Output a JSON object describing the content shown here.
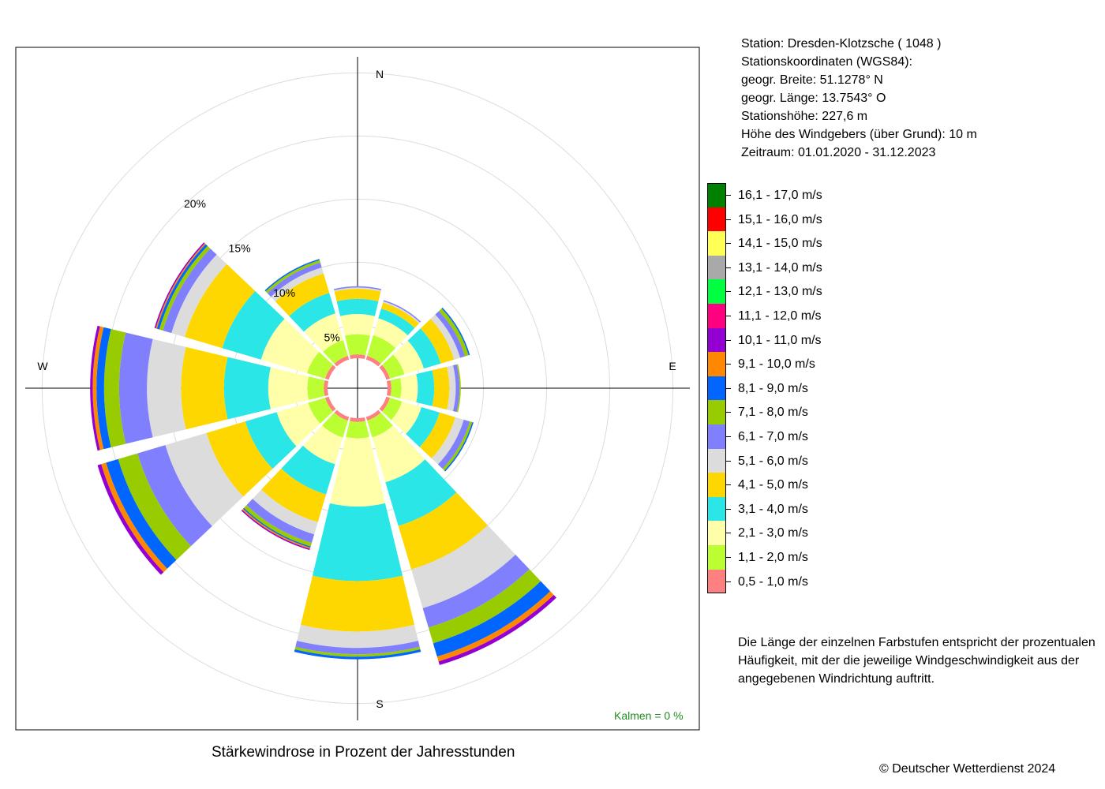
{
  "station_info": {
    "station": "Station:  Dresden-Klotzsche  ( 1048 )",
    "coords_title": "Stationskoordinaten (WGS84):",
    "latitude": "geogr. Breite: 51.1278° N",
    "longitude": "geogr. Länge: 13.7543° O",
    "elevation": "Stationshöhe: 227,6 m",
    "sensor_height": "Höhe des Windgebers (über Grund): 10 m",
    "period": "Zeitraum: 01.01.2020 - 31.12.2023"
  },
  "note_text": "Die Länge der einzelnen Farbstufen entspricht der prozentualen Häufigkeit, mit der die jeweilige Windgeschwindigkeit aus der angegebenen Windrichtung auftritt.",
  "caption": "Stärkewindrose in Prozent der Jahresstunden",
  "copyright": "© Deutscher Wetterdienst  2024",
  "kalmen": "Kalmen  =  0 %",
  "chart_data": {
    "type": "polar-stacked-bar (wind rose)",
    "compass": [
      "N",
      "E",
      "S",
      "W"
    ],
    "ring_labels": [
      "5%",
      "10%",
      "15%",
      "20%"
    ],
    "rings": [
      5,
      10,
      15,
      20,
      25
    ],
    "center_offset_percent": 2.4,
    "directions_deg": [
      0,
      30,
      60,
      90,
      120,
      150,
      180,
      210,
      240,
      270,
      300,
      330
    ],
    "classes": [
      {
        "label": "0,5 - 1,0 m/s",
        "color": "#FF8080"
      },
      {
        "label": "1,1 - 2,0 m/s",
        "color": "#BBFF33"
      },
      {
        "label": "2,1 - 3,0 m/s",
        "color": "#FFFFAA"
      },
      {
        "label": "3,1 - 4,0 m/s",
        "color": "#2AE6E6"
      },
      {
        "label": "4,1 - 5,0 m/s",
        "color": "#FFD700"
      },
      {
        "label": "5,1 - 6,0 m/s",
        "color": "#DCDCDC"
      },
      {
        "label": "6,1 - 7,0 m/s",
        "color": "#8080FF"
      },
      {
        "label": "7,1 - 8,0 m/s",
        "color": "#99CC00"
      },
      {
        "label": "8,1 - 9,0 m/s",
        "color": "#0066FF"
      },
      {
        "label": "9,1 - 10,0 m/s",
        "color": "#FF8800"
      },
      {
        "label": "10,1 - 11,0 m/s",
        "color": "#9400D3"
      },
      {
        "label": "11,1 - 12,0 m/s",
        "color": "#FF0080"
      },
      {
        "label": "12,1 - 13,0 m/s",
        "color": "#00FF40"
      },
      {
        "label": "13,1 - 14,0 m/s",
        "color": "#A9A9A9"
      },
      {
        "label": "14,1 - 15,0 m/s",
        "color": "#FFFF55"
      },
      {
        "label": "15,1 - 16,0 m/s",
        "color": "#FF0000"
      },
      {
        "label": "16,1 - 17,0 m/s",
        "color": "#008000"
      }
    ],
    "series": [
      {
        "direction": "N",
        "values": [
          0.3,
          1.6,
          1.6,
          1.2,
          0.8,
          0.1,
          0.1,
          0,
          0,
          0,
          0,
          0,
          0,
          0,
          0,
          0,
          0
        ]
      },
      {
        "direction": "30",
        "values": [
          0.3,
          1.7,
          1.4,
          0.8,
          0.5,
          0.1,
          0.1,
          0,
          0,
          0,
          0,
          0,
          0,
          0,
          0,
          0,
          0
        ]
      },
      {
        "direction": "60",
        "values": [
          0.3,
          1.2,
          1.6,
          1.4,
          1.1,
          0.5,
          0.4,
          0.3,
          0.1,
          0,
          0,
          0,
          0,
          0,
          0,
          0,
          0
        ]
      },
      {
        "direction": "E",
        "values": [
          0.3,
          0.8,
          1.3,
          1.3,
          1.2,
          0.5,
          0.3,
          0.1,
          0,
          0,
          0,
          0,
          0,
          0,
          0,
          0,
          0
        ]
      },
      {
        "direction": "120",
        "values": [
          0.3,
          1.0,
          1.6,
          1.5,
          1.3,
          0.7,
          0.5,
          0.2,
          0.1,
          0,
          0,
          0,
          0,
          0,
          0,
          0,
          0
        ]
      },
      {
        "direction": "150",
        "values": [
          0.3,
          1.4,
          3.7,
          3.6,
          3.6,
          3.2,
          1.6,
          1.3,
          1.1,
          0.4,
          0.3,
          0,
          0,
          0,
          0,
          0,
          0
        ]
      },
      {
        "direction": "S",
        "values": [
          0.3,
          1.3,
          5.4,
          5.9,
          4.0,
          1.3,
          0.5,
          0.2,
          0.2,
          0,
          0,
          0,
          0,
          0,
          0,
          0,
          0
        ]
      },
      {
        "direction": "210",
        "values": [
          0.3,
          1.4,
          2.2,
          2.5,
          2.3,
          1.0,
          0.7,
          0.3,
          0.1,
          0.1,
          0.1,
          0,
          0,
          0,
          0,
          0,
          0
        ]
      },
      {
        "direction": "240",
        "values": [
          0.3,
          1.4,
          2.6,
          2.6,
          3.2,
          3.4,
          2.3,
          1.6,
          1.0,
          0.4,
          0.3,
          0,
          0,
          0,
          0,
          0,
          0
        ]
      },
      {
        "direction": "W",
        "values": [
          0.3,
          1.3,
          3.1,
          3.5,
          3.4,
          2.7,
          2.2,
          1.2,
          0.6,
          0.3,
          0.2,
          0,
          0,
          0,
          0,
          0,
          0
        ]
      },
      {
        "direction": "300",
        "values": [
          0.3,
          1.5,
          3.8,
          3.2,
          3.1,
          1.1,
          0.7,
          0.3,
          0.2,
          0.1,
          0.1,
          0,
          0,
          0,
          0,
          0,
          0
        ]
      },
      {
        "direction": "330",
        "values": [
          0.3,
          1.3,
          2.2,
          1.7,
          1.6,
          0.5,
          0.4,
          0.2,
          0.1,
          0,
          0,
          0,
          0,
          0,
          0,
          0,
          0
        ]
      }
    ]
  }
}
